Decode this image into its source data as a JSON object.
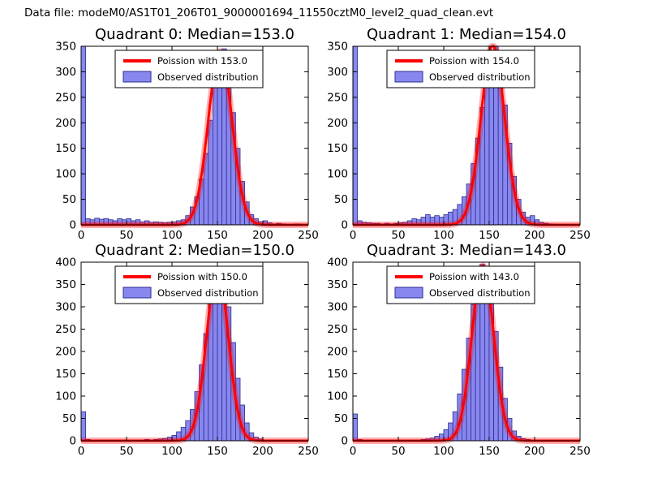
{
  "figure": {
    "title": "Data file: modeM0/AS1T01_206T01_9000001694_11550cztM0_level2_quad_clean.evt",
    "background": "#ffffff"
  },
  "colors": {
    "bar_fill": "#8787ef",
    "bar_edge": "#2d2d8f",
    "fit_line": "#ff0000",
    "axis": "#000000",
    "legend_bg": "#ffffff"
  },
  "chart_data": [
    {
      "type": "bar",
      "subtype": "histogram-with-fit",
      "title": "Quadrant 0: Median=153.0",
      "median": 153.0,
      "legend": [
        {
          "label": "Poission with 153.0",
          "handle": "line",
          "color": "#ff0000"
        },
        {
          "label": "Observed distribution",
          "handle": "patch",
          "color": "#8787ef"
        }
      ],
      "xlim": [
        0,
        250
      ],
      "ylim": [
        0,
        350
      ],
      "xticks": [
        0,
        50,
        100,
        150,
        200,
        250
      ],
      "yticks": [
        0,
        50,
        100,
        150,
        200,
        250,
        300,
        350
      ],
      "bin_width": 5,
      "bar_heights": [
        350,
        12,
        10,
        13,
        11,
        12,
        10,
        8,
        12,
        10,
        12,
        8,
        10,
        6,
        8,
        5,
        6,
        5,
        4,
        5,
        6,
        8,
        10,
        18,
        35,
        55,
        90,
        140,
        205,
        275,
        330,
        345,
        290,
        220,
        150,
        85,
        45,
        20,
        12,
        6,
        8,
        4,
        2,
        3,
        2,
        1,
        0,
        2,
        0,
        0
      ],
      "fit": {
        "mean": 153.0,
        "sigma": 13,
        "amplitude": 340
      }
    },
    {
      "type": "bar",
      "subtype": "histogram-with-fit",
      "title": "Quadrant 1: Median=154.0",
      "median": 154.0,
      "legend": [
        {
          "label": "Poission with 154.0",
          "handle": "line",
          "color": "#ff0000"
        },
        {
          "label": "Observed distribution",
          "handle": "patch",
          "color": "#8787ef"
        }
      ],
      "xlim": [
        0,
        250
      ],
      "ylim": [
        0,
        350
      ],
      "xticks": [
        0,
        50,
        100,
        150,
        200,
        250
      ],
      "yticks": [
        0,
        50,
        100,
        150,
        200,
        250,
        300,
        350
      ],
      "bin_width": 5,
      "bar_heights": [
        350,
        8,
        5,
        4,
        3,
        3,
        2,
        3,
        2,
        3,
        4,
        5,
        8,
        12,
        10,
        15,
        20,
        15,
        18,
        15,
        20,
        25,
        30,
        40,
        55,
        80,
        120,
        170,
        230,
        295,
        340,
        350,
        300,
        235,
        160,
        95,
        50,
        25,
        15,
        18,
        10,
        5,
        3,
        2,
        1,
        0,
        0,
        0,
        0,
        0
      ],
      "fit": {
        "mean": 154.0,
        "sigma": 13,
        "amplitude": 352
      }
    },
    {
      "type": "bar",
      "subtype": "histogram-with-fit",
      "title": "Quadrant 2: Median=150.0",
      "median": 150.0,
      "legend": [
        {
          "label": "Poission with 150.0",
          "handle": "line",
          "color": "#ff0000"
        },
        {
          "label": "Observed distribution",
          "handle": "patch",
          "color": "#8787ef"
        }
      ],
      "xlim": [
        0,
        250
      ],
      "ylim": [
        0,
        400
      ],
      "xticks": [
        0,
        50,
        100,
        150,
        200,
        250
      ],
      "yticks": [
        0,
        50,
        100,
        150,
        200,
        250,
        300,
        350,
        400
      ],
      "bin_width": 5,
      "bar_heights": [
        65,
        3,
        2,
        2,
        1,
        2,
        1,
        2,
        1,
        2,
        2,
        1,
        2,
        2,
        3,
        2,
        3,
        4,
        5,
        8,
        12,
        20,
        30,
        45,
        70,
        110,
        170,
        240,
        310,
        365,
        385,
        360,
        300,
        220,
        140,
        80,
        40,
        18,
        8,
        4,
        2,
        1,
        1,
        0,
        0,
        0,
        2,
        0,
        0,
        0
      ],
      "fit": {
        "mean": 150.0,
        "sigma": 12,
        "amplitude": 385
      }
    },
    {
      "type": "bar",
      "subtype": "histogram-with-fit",
      "title": "Quadrant 3: Median=143.0",
      "median": 143.0,
      "legend": [
        {
          "label": "Poission with 143.0",
          "handle": "line",
          "color": "#ff0000"
        },
        {
          "label": "Observed distribution",
          "handle": "patch",
          "color": "#8787ef"
        }
      ],
      "xlim": [
        0,
        250
      ],
      "ylim": [
        0,
        400
      ],
      "xticks": [
        0,
        50,
        100,
        150,
        200,
        250
      ],
      "yticks": [
        0,
        50,
        100,
        150,
        200,
        250,
        300,
        350,
        400
      ],
      "bin_width": 5,
      "bar_heights": [
        60,
        3,
        2,
        1,
        1,
        1,
        1,
        1,
        1,
        1,
        1,
        2,
        2,
        2,
        2,
        3,
        4,
        6,
        10,
        15,
        25,
        40,
        65,
        105,
        160,
        230,
        305,
        365,
        395,
        380,
        320,
        245,
        165,
        95,
        50,
        22,
        10,
        5,
        3,
        2,
        1,
        1,
        0,
        0,
        0,
        2,
        0,
        0,
        0,
        0
      ],
      "fit": {
        "mean": 143.0,
        "sigma": 12,
        "amplitude": 392
      }
    }
  ]
}
